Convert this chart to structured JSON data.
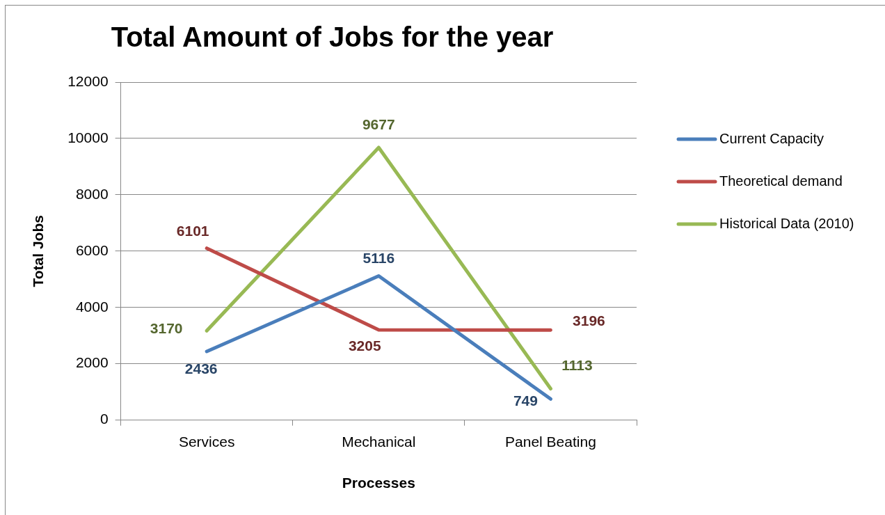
{
  "chart_data": {
    "type": "line",
    "title": "Total Amount of Jobs for the year",
    "xlabel": "Processes",
    "ylabel": "Total Jobs",
    "categories": [
      "Services",
      "Mechanical",
      "Panel Beating"
    ],
    "series": [
      {
        "name": "Current Capacity",
        "color": "#4a7ebb",
        "values": [
          2436,
          5116,
          749
        ]
      },
      {
        "name": "Theoretical demand",
        "color": "#be4b48",
        "values": [
          6101,
          3205,
          3196
        ]
      },
      {
        "name": "Historical Data (2010)",
        "color": "#98b954",
        "values": [
          3170,
          9677,
          1113
        ]
      }
    ],
    "ylim": [
      0,
      12000
    ],
    "yticks": [
      0,
      2000,
      4000,
      6000,
      8000,
      10000,
      12000
    ],
    "grid": "y",
    "legend": "right",
    "marker": "none",
    "line_style": "solid",
    "data_labels": true
  }
}
